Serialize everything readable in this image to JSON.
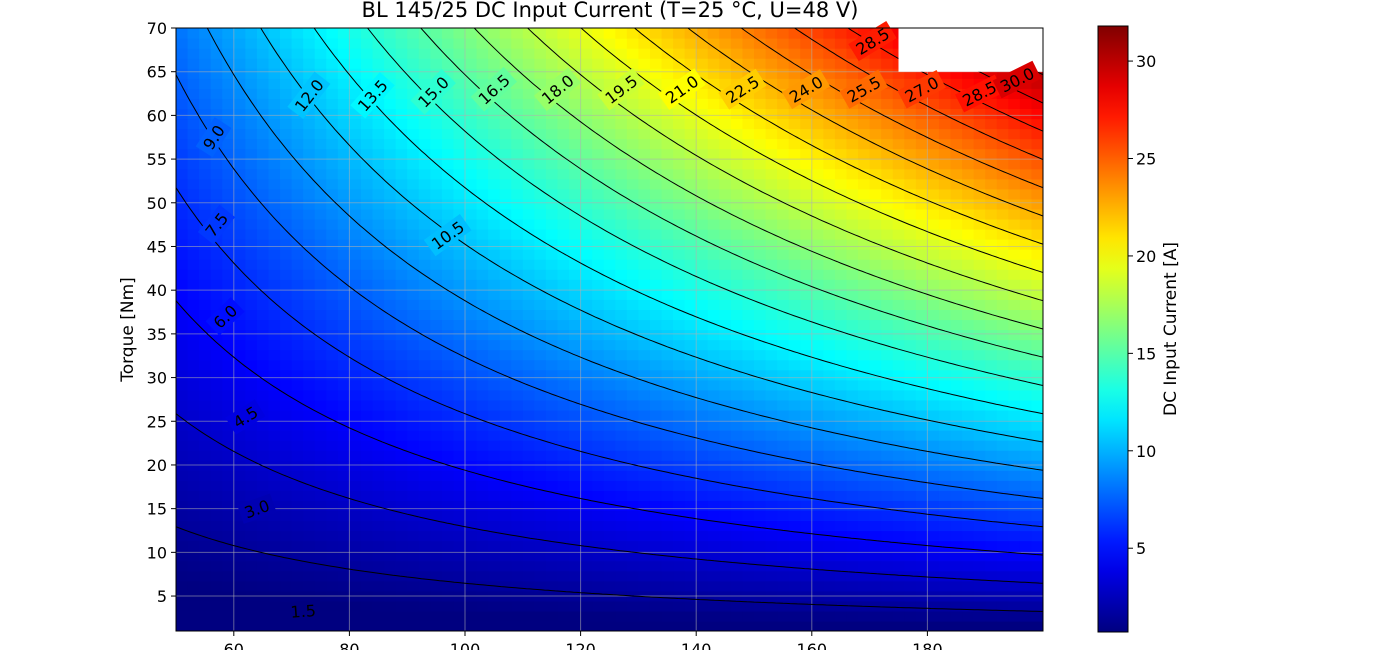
{
  "chart_data": {
    "type": "heatmap",
    "subtype": "filled-contour",
    "title": "BL 145/25 DC Input Current (T=25 °C, U=48 V)",
    "xlabel": "",
    "ylabel": "Torque [Nm]",
    "colorbar_label": "DC Input Current [A]",
    "colormap": "jet",
    "xlim": [
      50,
      200
    ],
    "ylim": [
      1,
      70
    ],
    "x_ticks": [
      60,
      80,
      100,
      120,
      140,
      160,
      180
    ],
    "y_ticks": [
      5,
      10,
      15,
      20,
      25,
      30,
      35,
      40,
      45,
      50,
      55,
      60,
      65,
      70
    ],
    "colorbar_range": [
      0.7,
      31.8
    ],
    "colorbar_ticks": [
      5,
      10,
      15,
      20,
      25,
      30
    ],
    "contour_levels": [
      1.5,
      3.0,
      4.5,
      6.0,
      7.5,
      9.0,
      10.5,
      12.0,
      13.5,
      15.0,
      16.5,
      18.0,
      19.5,
      21.0,
      22.5,
      24.0,
      25.5,
      27.0,
      28.5,
      30.0
    ],
    "contour_labels": [
      {
        "text": "1.5",
        "x": 72,
        "y": 3.3
      },
      {
        "text": "3.0",
        "x": 64,
        "y": 15.0
      },
      {
        "text": "4.5",
        "x": 62,
        "y": 25.5
      },
      {
        "text": "6.0",
        "x": 58.5,
        "y": 37.0
      },
      {
        "text": "7.5",
        "x": 57,
        "y": 47.5
      },
      {
        "text": "9.0",
        "x": 56.5,
        "y": 57.5
      },
      {
        "text": "10.5",
        "x": 97,
        "y": 46.3
      },
      {
        "text": "12.0",
        "x": 73,
        "y": 62.3
      },
      {
        "text": "13.5",
        "x": 84,
        "y": 62.3
      },
      {
        "text": "15.0",
        "x": 94.5,
        "y": 62.7
      },
      {
        "text": "16.5",
        "x": 105,
        "y": 63.0
      },
      {
        "text": "18.0",
        "x": 116,
        "y": 63.0
      },
      {
        "text": "19.5",
        "x": 127,
        "y": 63.0
      },
      {
        "text": "21.0",
        "x": 137.5,
        "y": 63.0
      },
      {
        "text": "22.5",
        "x": 148,
        "y": 63.0
      },
      {
        "text": "24.0",
        "x": 159,
        "y": 63.0
      },
      {
        "text": "25.5",
        "x": 169,
        "y": 63.0
      },
      {
        "text": "27.0",
        "x": 179,
        "y": 63.0
      },
      {
        "text": "28.5",
        "x": 189,
        "y": 62.5
      },
      {
        "text": "30.0",
        "x": 195.5,
        "y": 64.1
      },
      {
        "text": "28.5",
        "x": 170.5,
        "y": 68.5
      }
    ],
    "cutout_region": [
      {
        "x": 175,
        "y": 70
      },
      {
        "x": 200,
        "y": 70
      },
      {
        "x": 200,
        "y": 65
      },
      {
        "x": 175,
        "y": 65
      }
    ],
    "grid": true
  }
}
